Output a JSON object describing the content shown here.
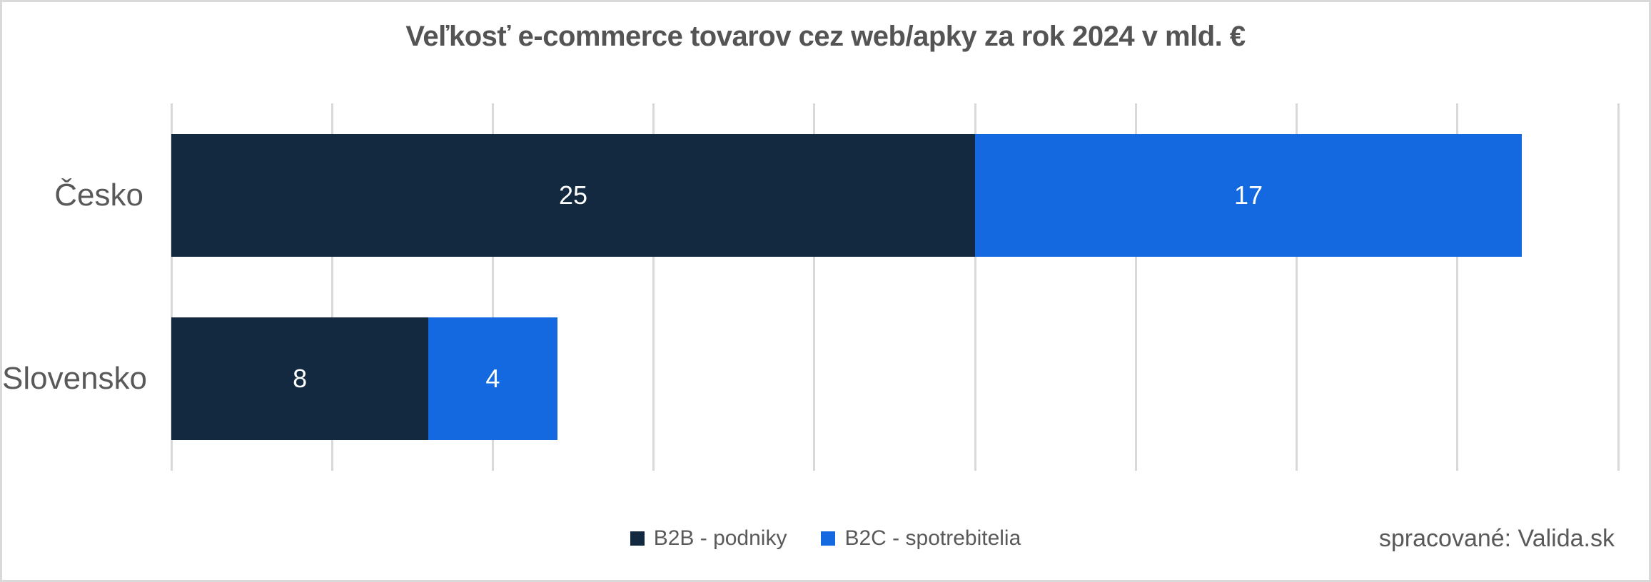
{
  "source_note": "spracované: Valida.sk",
  "colors": {
    "background": "#FFFFFF",
    "border": "#D9D9D9",
    "gridline": "#D9D9D9",
    "title_text": "#545454",
    "label_text": "#595959",
    "data_label_text": "#FFFFFF",
    "series_b2b": "#122940",
    "series_b2c": "#1469E0"
  },
  "chart_data": {
    "type": "bar",
    "orientation": "horizontal",
    "stacked": true,
    "title": "Veľkosť e-commerce tovarov cez web/apky za rok 2024 v mld. €",
    "categories": [
      "Česko",
      "Slovensko"
    ],
    "series": [
      {
        "name": "B2B - podniky",
        "color": "#122940",
        "values": [
          25,
          8
        ]
      },
      {
        "name": "B2C - spotrebitelia",
        "color": "#1469E0",
        "values": [
          17,
          4
        ]
      }
    ],
    "xlim": [
      0,
      45
    ],
    "gridline_step": 5,
    "grid": "vertical-only",
    "x_tick_labels_visible": false,
    "data_labels": "inside-center",
    "legend_position": "bottom-center"
  }
}
